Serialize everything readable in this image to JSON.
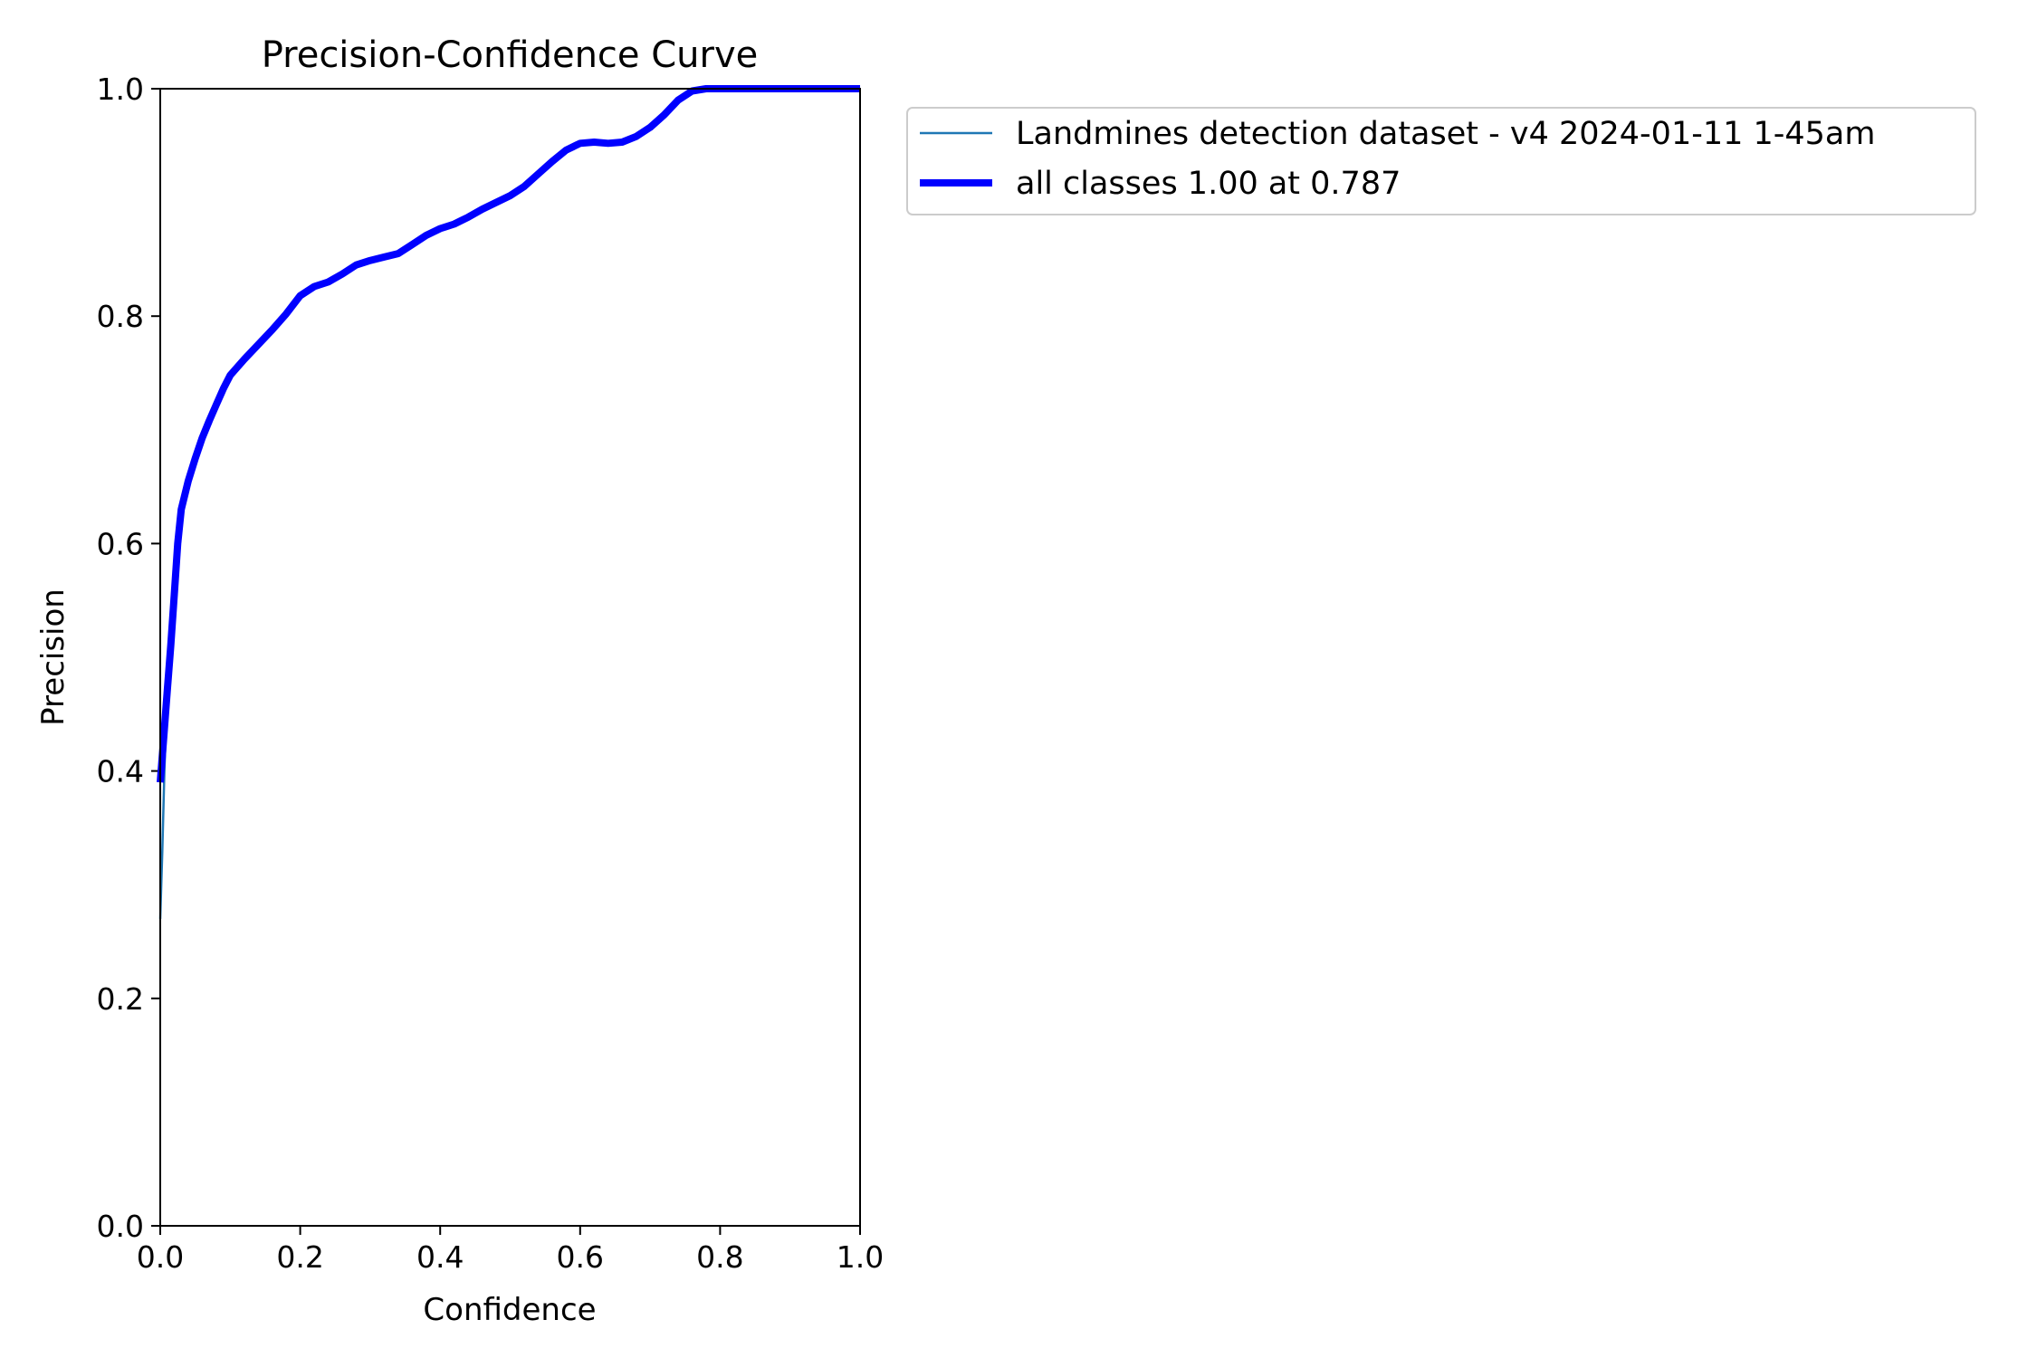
{
  "chart_data": {
    "type": "line",
    "title": "Precision-Confidence Curve",
    "xlabel": "Confidence",
    "ylabel": "Precision",
    "xlim": [
      0,
      1
    ],
    "ylim": [
      0,
      1
    ],
    "xticks": [
      "0.0",
      "0.2",
      "0.4",
      "0.6",
      "0.8",
      "1.0"
    ],
    "yticks": [
      "0.0",
      "0.2",
      "0.4",
      "0.6",
      "0.8",
      "1.0"
    ],
    "grid": false,
    "legend_position": "outside-top-right",
    "series": [
      {
        "name": "Landmines detection dataset - v4 2024-01-11 1-45am",
        "color": "#1f77b4",
        "x": [
          0.0,
          0.003,
          0.006,
          0.01,
          0.015,
          0.02,
          0.025,
          0.03,
          0.04,
          0.05,
          0.06,
          0.07,
          0.08,
          0.09,
          0.1,
          0.12,
          0.14,
          0.16,
          0.18,
          0.2,
          0.22,
          0.24,
          0.26,
          0.28,
          0.3,
          0.32,
          0.34,
          0.36,
          0.38,
          0.4,
          0.42,
          0.44,
          0.46,
          0.48,
          0.5,
          0.52,
          0.54,
          0.56,
          0.58,
          0.6,
          0.62,
          0.64,
          0.66,
          0.68,
          0.7,
          0.72,
          0.74,
          0.76,
          0.78,
          0.8,
          0.85,
          0.9,
          0.95,
          1.0
        ],
        "y": [
          0.27,
          0.33,
          0.4,
          0.47,
          0.53,
          0.57,
          0.6,
          0.62,
          0.65,
          0.67,
          0.69,
          0.705,
          0.72,
          0.735,
          0.748,
          0.762,
          0.775,
          0.788,
          0.802,
          0.818,
          0.826,
          0.83,
          0.837,
          0.845,
          0.849,
          0.852,
          0.855,
          0.865,
          0.872,
          0.878,
          0.882,
          0.888,
          0.895,
          0.9,
          0.905,
          0.913,
          0.924,
          0.935,
          0.945,
          0.952,
          0.952,
          0.951,
          0.952,
          0.957,
          0.965,
          0.975,
          0.988,
          0.998,
          1.0,
          1.0,
          1.0,
          1.0,
          1.0,
          1.0
        ]
      },
      {
        "name": "all classes 1.00 at 0.787",
        "color": "#0000ff",
        "x": [
          0.0,
          0.005,
          0.01,
          0.015,
          0.02,
          0.025,
          0.03,
          0.04,
          0.05,
          0.06,
          0.07,
          0.08,
          0.09,
          0.1,
          0.12,
          0.14,
          0.16,
          0.18,
          0.2,
          0.22,
          0.24,
          0.26,
          0.28,
          0.3,
          0.32,
          0.34,
          0.36,
          0.38,
          0.4,
          0.42,
          0.44,
          0.46,
          0.48,
          0.5,
          0.52,
          0.54,
          0.56,
          0.58,
          0.6,
          0.62,
          0.64,
          0.66,
          0.68,
          0.7,
          0.72,
          0.74,
          0.76,
          0.78,
          0.8,
          0.85,
          0.9,
          0.95,
          1.0
        ],
        "y": [
          0.39,
          0.43,
          0.47,
          0.51,
          0.555,
          0.6,
          0.63,
          0.655,
          0.675,
          0.693,
          0.708,
          0.722,
          0.736,
          0.748,
          0.762,
          0.775,
          0.788,
          0.802,
          0.818,
          0.826,
          0.83,
          0.837,
          0.845,
          0.849,
          0.852,
          0.855,
          0.863,
          0.871,
          0.877,
          0.881,
          0.887,
          0.894,
          0.9,
          0.906,
          0.914,
          0.925,
          0.936,
          0.946,
          0.952,
          0.953,
          0.952,
          0.953,
          0.958,
          0.966,
          0.977,
          0.99,
          0.998,
          1.0,
          1.0,
          1.0,
          1.0,
          1.0,
          1.0
        ]
      }
    ]
  }
}
